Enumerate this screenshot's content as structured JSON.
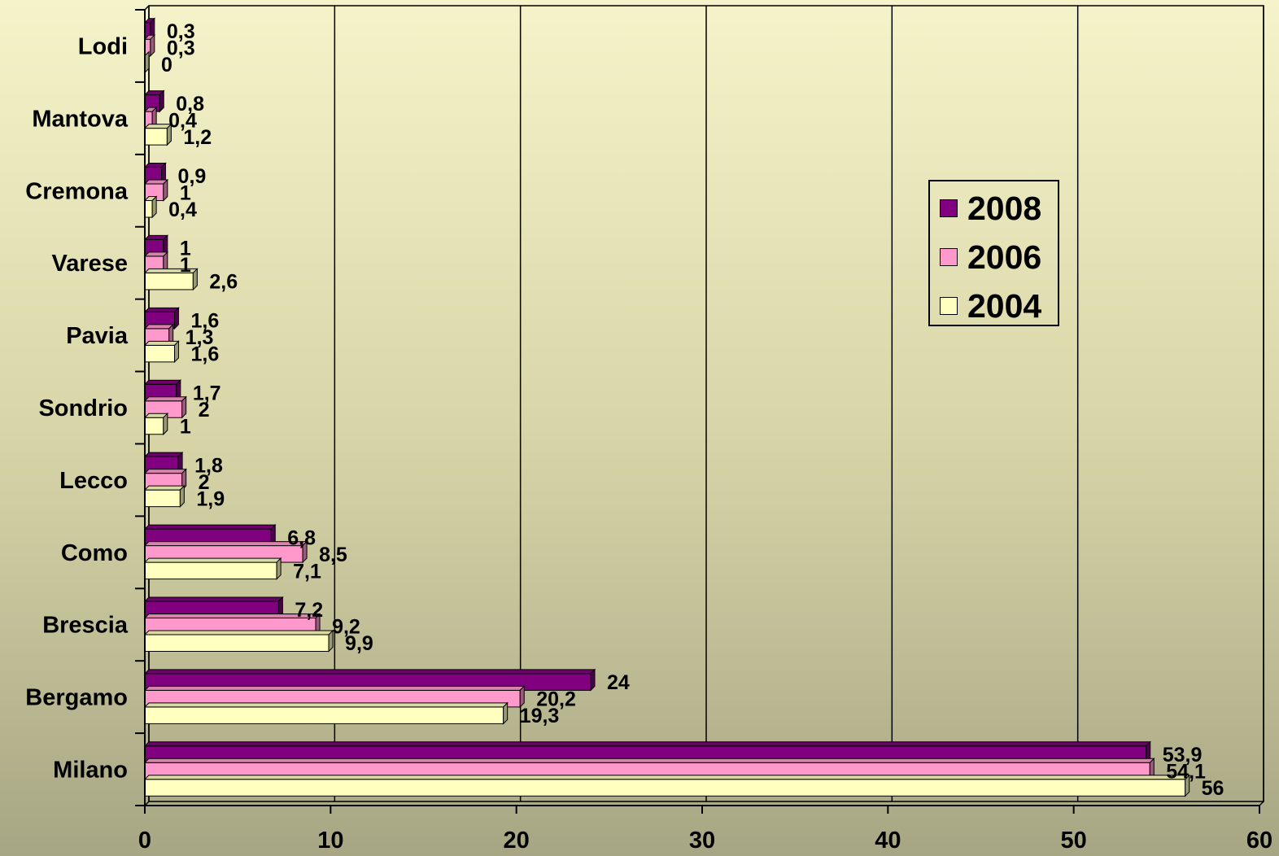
{
  "chart_data": {
    "type": "bar",
    "orientation": "horizontal",
    "categories": [
      "Lodi",
      "Mantova",
      "Cremona",
      "Varese",
      "Pavia",
      "Sondrio",
      "Lecco",
      "Como",
      "Brescia",
      "Bergamo",
      "Milano"
    ],
    "series": [
      {
        "name": "2008",
        "values": [
          0.3,
          0.8,
          0.9,
          1,
          1.6,
          1.7,
          1.8,
          6.8,
          7.2,
          24,
          53.9
        ],
        "labels": [
          "0,3",
          "0,8",
          "0,9",
          "1",
          "1,6",
          "1,7",
          "1,8",
          "6,8",
          "7,2",
          "24",
          "53,9"
        ],
        "color": "#800080"
      },
      {
        "name": "2006",
        "values": [
          0.3,
          0.4,
          1,
          1,
          1.3,
          2,
          2,
          8.5,
          9.2,
          20.2,
          54.1
        ],
        "labels": [
          "0,3",
          "0,4",
          "1",
          "1",
          "1,3",
          "2",
          "2",
          "8,5",
          "9,2",
          "20,2",
          "54,1"
        ],
        "color": "#ff99cc"
      },
      {
        "name": "2004",
        "values": [
          0,
          1.2,
          0.4,
          2.6,
          1.6,
          1,
          1.9,
          7.1,
          9.9,
          19.3,
          56
        ],
        "labels": [
          "0",
          "1,2",
          "0,4",
          "2,6",
          "1,6",
          "1",
          "1,9",
          "7,1",
          "9,9",
          "19,3",
          "56"
        ],
        "color": "#ffffc0"
      }
    ],
    "xlim": [
      0,
      60
    ],
    "x_ticks": [
      "0",
      "10",
      "20",
      "30",
      "40",
      "50",
      "60"
    ],
    "grid": true,
    "legend_position": "right"
  }
}
